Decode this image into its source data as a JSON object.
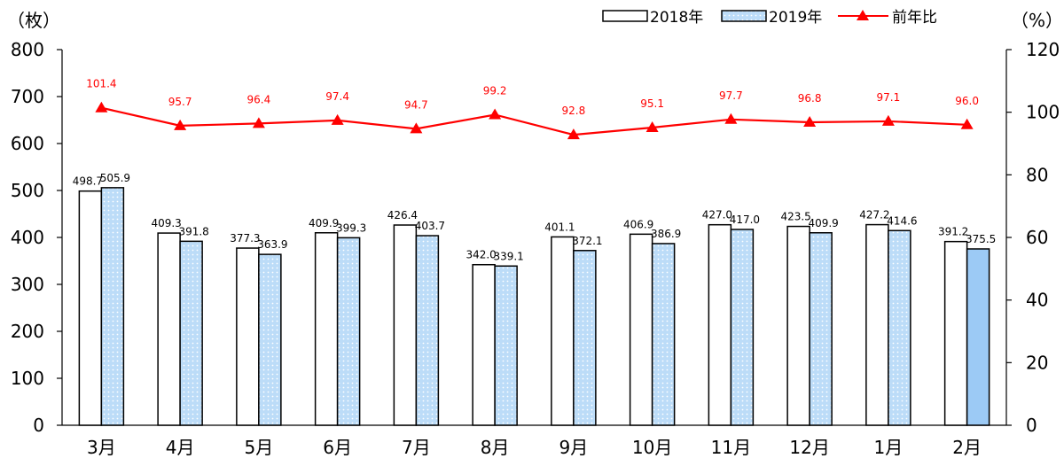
{
  "chart_data": {
    "type": "bar",
    "categories": [
      "3月",
      "4月",
      "5月",
      "6月",
      "7月",
      "8月",
      "9月",
      "10月",
      "11月",
      "12月",
      "1月",
      "2月"
    ],
    "series": [
      {
        "name": "2018年",
        "kind": "bar",
        "axis": "left",
        "values": [
          498.7,
          409.3,
          377.3,
          409.9,
          426.4,
          342.0,
          401.1,
          406.9,
          427.0,
          423.5,
          427.2,
          391.2
        ]
      },
      {
        "name": "2019年",
        "kind": "bar",
        "axis": "left",
        "values": [
          505.9,
          391.8,
          363.9,
          399.3,
          403.7,
          339.1,
          372.1,
          386.9,
          417.0,
          409.9,
          414.6,
          375.5
        ]
      },
      {
        "name": "前年比",
        "kind": "line",
        "axis": "right",
        "values": [
          101.4,
          95.7,
          96.4,
          97.4,
          94.7,
          99.2,
          92.8,
          95.1,
          97.7,
          96.8,
          97.1,
          96.0
        ]
      }
    ],
    "y_left": {
      "unit": "（枚）",
      "lim": [
        0,
        800
      ],
      "ticks": [
        0,
        100,
        200,
        300,
        400,
        500,
        600,
        700,
        800
      ]
    },
    "y_right": {
      "unit": "（%）",
      "lim": [
        0,
        120
      ],
      "ticks": [
        0,
        20,
        40,
        60,
        80,
        100,
        120
      ]
    },
    "grid": false,
    "legend_position": "top-right",
    "colors": {
      "bar_2018_fill": "#ffffff",
      "bar_2019_fill": "#bcdcf8",
      "bar_2019_last_fill": "#9ccaf5",
      "bar_outline": "#000000",
      "line": "#ff0000"
    }
  }
}
